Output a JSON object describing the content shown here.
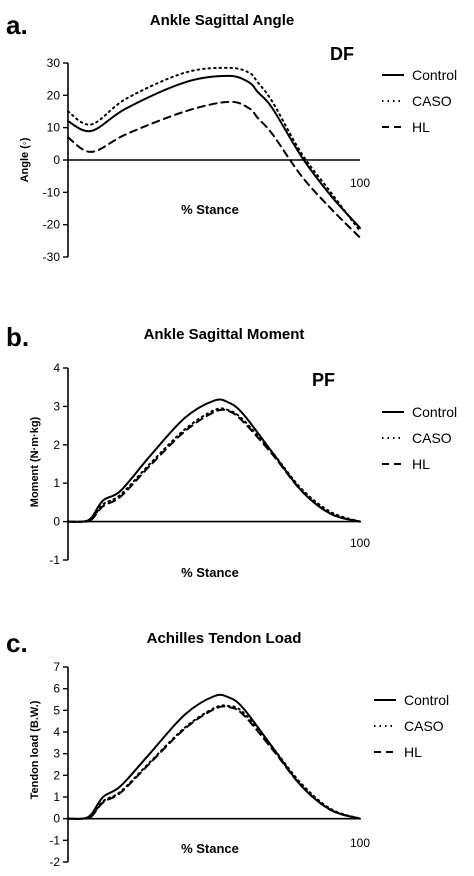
{
  "panels": [
    {
      "letter": "a.",
      "title": "Ankle Sagittal Angle",
      "tag": "DF",
      "xlabel": "% Stance",
      "ylabel": "Angle (◦)",
      "xmax_label": "100",
      "yticks": [
        -30,
        -20,
        -10,
        0,
        10,
        20,
        30
      ],
      "legend": [
        "Control",
        "CASO",
        "HL"
      ]
    },
    {
      "letter": "b.",
      "title": "Ankle Sagittal Moment",
      "tag": "PF",
      "xlabel": "% Stance",
      "ylabel": "Moment (N·m·kg)",
      "xmax_label": "100",
      "yticks": [
        -1,
        0,
        1,
        2,
        3,
        4
      ],
      "legend": [
        "Control",
        "CASO",
        "HL"
      ]
    },
    {
      "letter": "c.",
      "title": "Achilles Tendon Load",
      "tag": "",
      "xlabel": "% Stance",
      "ylabel": "Tendon load (B.W.)",
      "xmax_label": "100",
      "yticks": [
        -2,
        -1,
        0,
        1,
        2,
        3,
        4,
        5,
        6,
        7
      ],
      "legend": [
        "Control",
        "CASO",
        "HL"
      ]
    }
  ],
  "chart_data": [
    {
      "type": "line",
      "title": "Ankle Sagittal Angle",
      "xlabel": "% Stance",
      "ylabel": "Angle (◦)",
      "xlim": [
        0,
        100
      ],
      "ylim": [
        -30,
        30
      ],
      "x": [
        0,
        8,
        20,
        40,
        55,
        62,
        65,
        70,
        80,
        90,
        100
      ],
      "series": [
        {
          "name": "Control",
          "style": "solid",
          "values": [
            12,
            9,
            16,
            24,
            26,
            24,
            21,
            16,
            1,
            -11,
            -21
          ]
        },
        {
          "name": "CASO",
          "style": "dotted",
          "values": [
            15,
            11,
            19,
            27,
            28.5,
            27,
            24,
            18,
            2,
            -10,
            -22
          ]
        },
        {
          "name": "HL",
          "style": "dashed",
          "values": [
            7,
            2.5,
            8,
            15,
            18,
            16,
            13,
            8,
            -5,
            -15,
            -24
          ]
        }
      ]
    },
    {
      "type": "line",
      "title": "Ankle Sagittal Moment",
      "xlabel": "% Stance",
      "ylabel": "Moment (N·m·kg)",
      "xlim": [
        0,
        100
      ],
      "ylim": [
        -1,
        4
      ],
      "x": [
        0,
        5,
        8,
        12,
        18,
        28,
        40,
        50,
        55,
        60,
        70,
        80,
        90,
        100
      ],
      "series": [
        {
          "name": "Control",
          "style": "solid",
          "values": [
            0,
            0,
            0.1,
            0.55,
            0.8,
            1.7,
            2.7,
            3.15,
            3.1,
            2.8,
            1.8,
            0.8,
            0.2,
            0
          ]
        },
        {
          "name": "CASO",
          "style": "dotted",
          "values": [
            0,
            0,
            0.05,
            0.45,
            0.7,
            1.5,
            2.4,
            2.9,
            2.9,
            2.65,
            1.8,
            0.85,
            0.25,
            0
          ]
        },
        {
          "name": "HL",
          "style": "dashed",
          "values": [
            0,
            0,
            0.05,
            0.4,
            0.65,
            1.45,
            2.35,
            2.85,
            2.88,
            2.6,
            1.75,
            0.8,
            0.2,
            0
          ]
        }
      ]
    },
    {
      "type": "line",
      "title": "Achilles Tendon Load",
      "xlabel": "% Stance",
      "ylabel": "Tendon load (B.W.)",
      "xlim": [
        0,
        100
      ],
      "ylim": [
        -2,
        7
      ],
      "x": [
        0,
        5,
        8,
        12,
        18,
        28,
        40,
        50,
        55,
        60,
        70,
        80,
        90,
        100
      ],
      "series": [
        {
          "name": "Control",
          "style": "solid",
          "values": [
            0,
            0,
            0.2,
            1.0,
            1.5,
            3.0,
            4.8,
            5.65,
            5.6,
            5.1,
            3.3,
            1.5,
            0.4,
            0
          ]
        },
        {
          "name": "CASO",
          "style": "dotted",
          "values": [
            0,
            0,
            0.1,
            0.8,
            1.25,
            2.6,
            4.2,
            5.1,
            5.2,
            4.9,
            3.3,
            1.6,
            0.45,
            0
          ]
        },
        {
          "name": "HL",
          "style": "dashed",
          "values": [
            0,
            0,
            0.1,
            0.75,
            1.2,
            2.55,
            4.15,
            5.05,
            5.15,
            4.8,
            3.2,
            1.5,
            0.4,
            0
          ]
        }
      ]
    }
  ]
}
